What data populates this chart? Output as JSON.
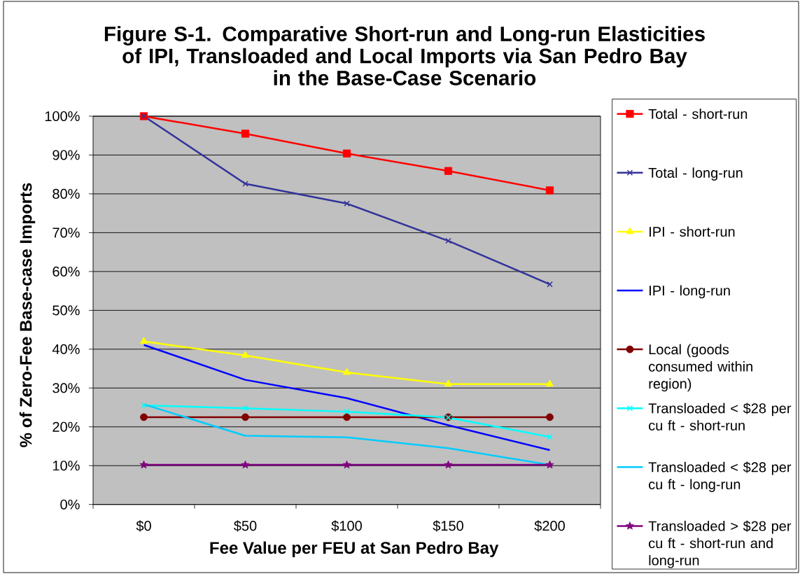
{
  "chart_data": {
    "type": "line",
    "title": "Figure S-1. Comparative Short-run and Long-run Elasticities of IPI, Transloaded and Local Imports via San Pedro Bay in the Base-Case Scenario",
    "xlabel": "Fee Value per FEU at San Pedro Bay",
    "ylabel": "% of Zero-Fee Base-case Imports",
    "categories": [
      "$0",
      "$50",
      "$100",
      "$150",
      "$200"
    ],
    "ylim": [
      0,
      100
    ],
    "yticks": [
      {
        "value": 0,
        "label": "0%"
      },
      {
        "value": 10,
        "label": "10%"
      },
      {
        "value": 20,
        "label": "20%"
      },
      {
        "value": 30,
        "label": "30%"
      },
      {
        "value": 40,
        "label": "40%"
      },
      {
        "value": 50,
        "label": "50%"
      },
      {
        "value": 60,
        "label": "60%"
      },
      {
        "value": 70,
        "label": "70%"
      },
      {
        "value": 80,
        "label": "80%"
      },
      {
        "value": 90,
        "label": "90%"
      },
      {
        "value": 100,
        "label": "100%"
      }
    ],
    "grid": "y",
    "legend": "right",
    "series": [
      {
        "name": "Total - short-run",
        "color": "#ff0000",
        "marker": "square",
        "values": [
          100,
          95.5,
          90.4,
          85.9,
          80.9
        ]
      },
      {
        "name": "Total - long-run",
        "color": "#333399",
        "marker": "cross",
        "values": [
          100,
          82.6,
          77.5,
          67.9,
          56.7
        ]
      },
      {
        "name": "IPI - short-run",
        "color": "#ffff00",
        "marker": "triangle",
        "values": [
          42,
          38.4,
          34,
          31,
          31
        ]
      },
      {
        "name": "IPI - long-run",
        "color": "#0000ff",
        "marker": "none",
        "values": [
          41.1,
          32.1,
          27.4,
          20.4,
          14
        ]
      },
      {
        "name": "Local (goods consumed within region)",
        "color": "#800000",
        "marker": "circle",
        "values": [
          22.5,
          22.5,
          22.5,
          22.5,
          22.5
        ]
      },
      {
        "name": "Transloaded < $28 per cu ft - short-run",
        "color": "#00ffff",
        "marker": "cross",
        "values": [
          25.5,
          24.8,
          23.9,
          22.4,
          17.4
        ]
      },
      {
        "name": "Transloaded < $28 per cu ft - long-run",
        "color": "#00ccff",
        "marker": "none",
        "values": [
          25.8,
          17.7,
          17.3,
          14.5,
          10.2
        ]
      },
      {
        "name": "Transloaded > $28 per cu ft - short-run and long-run",
        "color": "#800080",
        "marker": "star",
        "values": [
          10.2,
          10.2,
          10.2,
          10.2,
          10.2
        ]
      }
    ]
  }
}
